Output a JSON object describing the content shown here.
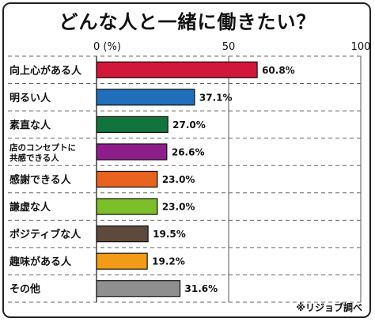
{
  "chart_data": {
    "type": "bar",
    "orientation": "horizontal",
    "title": "どんな人と一緒に働きたい？",
    "axis_unit_label": "0 (%)",
    "ticks": [
      "50",
      "100"
    ],
    "xlim": [
      0,
      100
    ],
    "categories": [
      [
        "向上心がある人"
      ],
      [
        "明るい人"
      ],
      [
        "素直な人"
      ],
      [
        "店のコンセプトに",
        "共感できる人"
      ],
      [
        "感謝できる人"
      ],
      [
        "謙虚な人"
      ],
      [
        "ポジティブな人"
      ],
      [
        "趣味がある人"
      ],
      [
        "その他"
      ]
    ],
    "values": [
      60.8,
      37.1,
      27.0,
      26.6,
      23.0,
      23.0,
      19.5,
      19.2,
      31.6
    ],
    "value_labels": [
      "60.8%",
      "37.1%",
      "27.0%",
      "26.6%",
      "23.0%",
      "23.0%",
      "19.5%",
      "19.2%",
      "31.6%"
    ],
    "colors": [
      "#d3173a",
      "#1f6fba",
      "#12743d",
      "#8e1d8c",
      "#e8631d",
      "#7cbf2a",
      "#5d4a3c",
      "#f29b16",
      "#8f8f8f"
    ],
    "grid": true,
    "source_note": "※リジョブ調べ"
  }
}
